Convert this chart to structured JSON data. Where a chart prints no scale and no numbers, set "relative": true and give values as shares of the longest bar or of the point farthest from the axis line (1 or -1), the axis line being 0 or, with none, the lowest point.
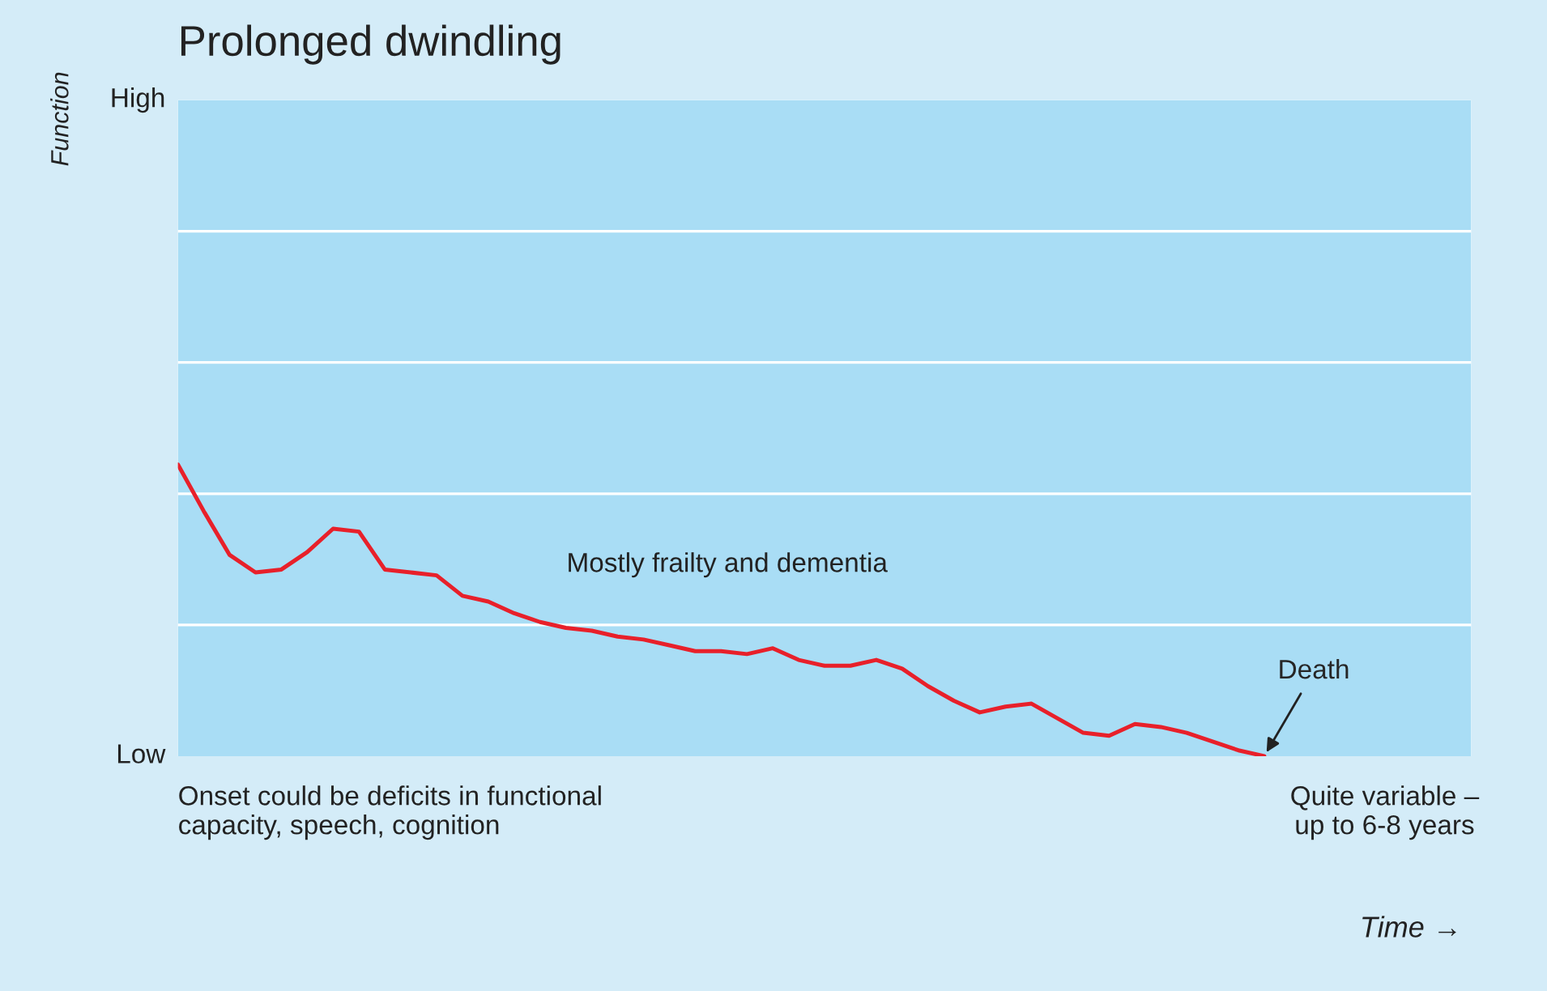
{
  "chart_data": {
    "type": "line",
    "title": "Prolonged dwindling",
    "relative": true,
    "categories": [
      null,
      null,
      null,
      null,
      null,
      null,
      null,
      null,
      null,
      null,
      null,
      null,
      null,
      null,
      null,
      null,
      null,
      null,
      null,
      null,
      null,
      null,
      null,
      null,
      null,
      null,
      null,
      null,
      null,
      null,
      null,
      null,
      null,
      null,
      null,
      null,
      null,
      null,
      null,
      null,
      null,
      null,
      null,
      null,
      null,
      null,
      null,
      null,
      null,
      null,
      null
    ],
    "series": [
      {
        "color": "#e8202a",
        "values": [
          1.0,
          0.84,
          0.69,
          0.63,
          0.64,
          0.7,
          0.78,
          0.77,
          0.64,
          0.63,
          0.62,
          0.55,
          0.53,
          0.49,
          0.46,
          0.44,
          0.43,
          0.41,
          0.4,
          0.38,
          0.36,
          0.36,
          0.35,
          0.37,
          0.33,
          0.31,
          0.31,
          0.33,
          0.3,
          0.24,
          0.19,
          0.15,
          0.17,
          0.18,
          0.13,
          0.08,
          0.07,
          0.11,
          0.1,
          0.08,
          0.05,
          0.02,
          0.0,
          null,
          null,
          null,
          null,
          null,
          null,
          null,
          null
        ]
      }
    ],
    "legend": false,
    "marker": "none",
    "line_style": "solid",
    "annotations": [
      "Mostly frailty and dementia",
      "Onset could be deficits in functional\ncapacity, speech, cognition",
      "Quite variable –\nup to 6-8 years",
      "Death",
      "High",
      "Low",
      "Function",
      "Time →"
    ]
  }
}
